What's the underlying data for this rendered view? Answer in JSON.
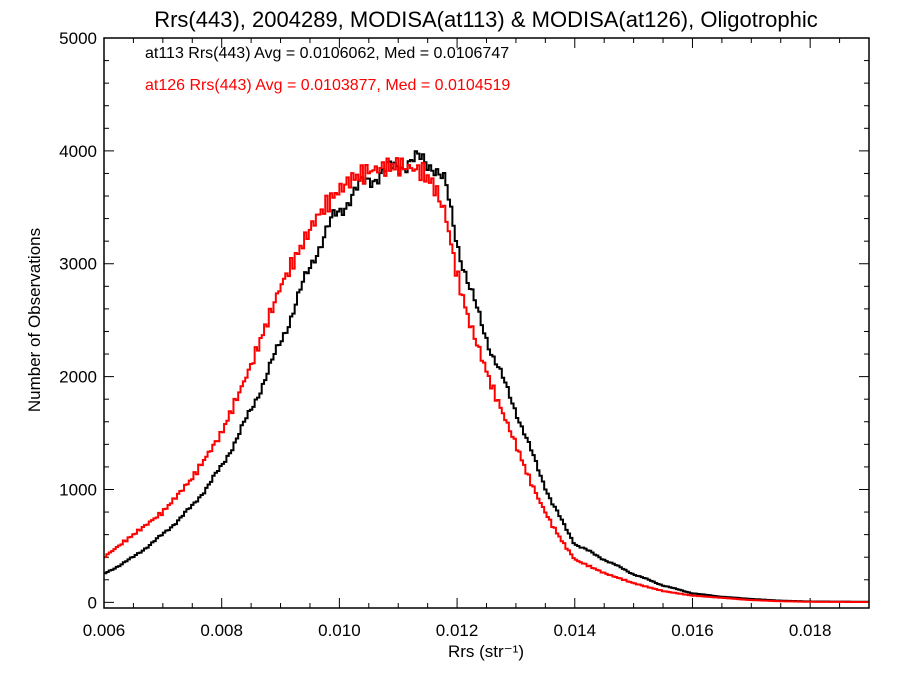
{
  "chart_data": {
    "type": "line",
    "title": "Rrs(443), 2004289, MODISA(at113) & MODISA(at126), Oligotrophic",
    "xlabel": "Rrs (str⁻¹)",
    "ylabel": "Number of Observations",
    "xlim": [
      0.006,
      0.019
    ],
    "ylim": [
      -50,
      5000
    ],
    "x_ticks": [
      "0.006",
      "0.008",
      "0.010",
      "0.012",
      "0.014",
      "0.016",
      "0.018"
    ],
    "y_ticks": [
      "0",
      "1000",
      "2000",
      "3000",
      "4000",
      "5000"
    ],
    "legend_position": "top-left",
    "series": [
      {
        "name": "at113",
        "color": "#000000",
        "legend_text": "at113 Rrs(443) Avg = 0.0106062, Med = 0.0106747",
        "x": [
          0.006,
          0.0065,
          0.007,
          0.0075,
          0.008,
          0.0085,
          0.009,
          0.0093,
          0.0096,
          0.0099,
          0.0102,
          0.0105,
          0.0108,
          0.011,
          0.0112,
          0.0114,
          0.0116,
          0.0118,
          0.012,
          0.0122,
          0.0124,
          0.0126,
          0.0128,
          0.013,
          0.0132,
          0.0134,
          0.0136,
          0.0138,
          0.014,
          0.0145,
          0.015,
          0.0155,
          0.016,
          0.0165,
          0.017,
          0.0175,
          0.018,
          0.019
        ],
        "y": [
          250,
          400,
          600,
          850,
          1200,
          1700,
          2300,
          2700,
          3100,
          3400,
          3600,
          3750,
          3820,
          3870,
          3900,
          3920,
          3880,
          3700,
          3200,
          2800,
          2500,
          2200,
          1950,
          1700,
          1420,
          1150,
          900,
          700,
          520,
          380,
          250,
          150,
          80,
          50,
          30,
          15,
          8,
          5
        ]
      },
      {
        "name": "at126",
        "color": "#ff0000",
        "legend_text": "at126 Rrs(443) Avg = 0.0103877, Med = 0.0104519",
        "x": [
          0.006,
          0.0065,
          0.007,
          0.0075,
          0.008,
          0.0085,
          0.009,
          0.0093,
          0.0096,
          0.0099,
          0.0102,
          0.0105,
          0.0108,
          0.011,
          0.0112,
          0.0114,
          0.0116,
          0.0118,
          0.012,
          0.0122,
          0.0124,
          0.0126,
          0.0128,
          0.013,
          0.0132,
          0.0134,
          0.0136,
          0.0138,
          0.014,
          0.0145,
          0.015,
          0.0155,
          0.016,
          0.0165,
          0.017,
          0.0175,
          0.018,
          0.019
        ],
        "y": [
          400,
          600,
          800,
          1100,
          1500,
          2100,
          2800,
          3100,
          3400,
          3600,
          3750,
          3820,
          3860,
          3870,
          3850,
          3820,
          3700,
          3450,
          2900,
          2500,
          2200,
          1900,
          1650,
          1400,
          1130,
          900,
          700,
          530,
          380,
          260,
          170,
          100,
          60,
          40,
          20,
          10,
          5,
          3
        ]
      }
    ]
  }
}
